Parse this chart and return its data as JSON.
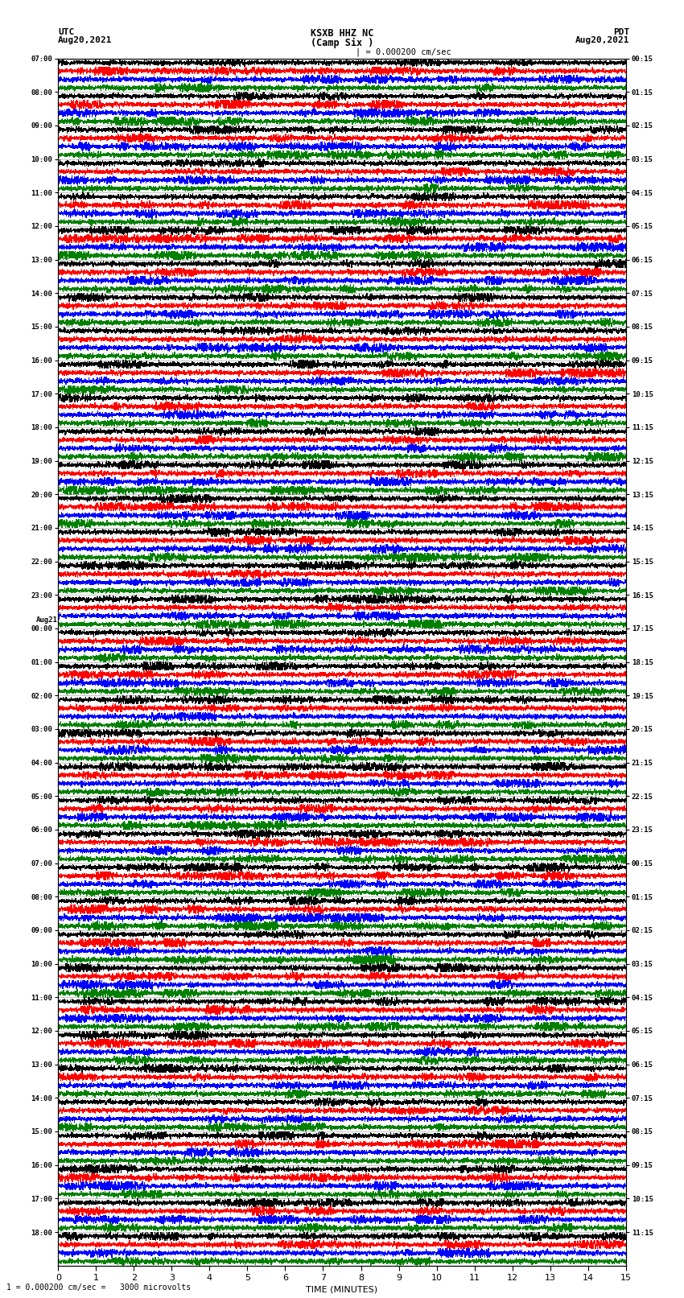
{
  "title_line1": "KSXB HHZ NC",
  "title_line2": "(Camp Six )",
  "left_header_line1": "UTC",
  "left_header_line2": "Aug20,2021",
  "right_header_line1": "PDT",
  "right_header_line2": "Aug20,2021",
  "scale_label": "| = 0.000200 cm/sec",
  "footer_label": "1 = 0.000200 cm/sec =   3000 microvolts",
  "xlabel": "TIME (MINUTES)",
  "xticks": [
    0,
    1,
    2,
    3,
    4,
    5,
    6,
    7,
    8,
    9,
    10,
    11,
    12,
    13,
    14,
    15
  ],
  "time_minutes": 15,
  "trace_colors": [
    "black",
    "red",
    "blue",
    "green"
  ],
  "num_hour_blocks": 36,
  "traces_per_block": 4,
  "figsize": [
    8.5,
    16.13
  ],
  "dpi": 100,
  "bg_color": "white",
  "left_time_labels": [
    "07:00",
    "08:00",
    "09:00",
    "10:00",
    "11:00",
    "12:00",
    "13:00",
    "14:00",
    "15:00",
    "16:00",
    "17:00",
    "18:00",
    "19:00",
    "20:00",
    "21:00",
    "22:00",
    "23:00",
    "00:00",
    "01:00",
    "02:00",
    "03:00",
    "04:00",
    "05:00",
    "06:00",
    "07:00",
    "08:00",
    "09:00",
    "10:00",
    "11:00",
    "12:00",
    "13:00",
    "14:00",
    "15:00",
    "16:00",
    "17:00",
    "18:00"
  ],
  "right_time_labels": [
    "00:15",
    "01:15",
    "02:15",
    "03:15",
    "04:15",
    "05:15",
    "06:15",
    "07:15",
    "08:15",
    "09:15",
    "10:15",
    "11:15",
    "12:15",
    "13:15",
    "14:15",
    "15:15",
    "16:15",
    "17:15",
    "18:15",
    "19:15",
    "20:15",
    "21:15",
    "22:15",
    "23:15",
    "00:15",
    "01:15",
    "02:15",
    "03:15",
    "04:15",
    "05:15",
    "06:15",
    "07:15",
    "08:15",
    "09:15",
    "10:15",
    "11:15"
  ],
  "aug21_block_index": 17,
  "noise_amp": 0.25,
  "lw": 0.25
}
